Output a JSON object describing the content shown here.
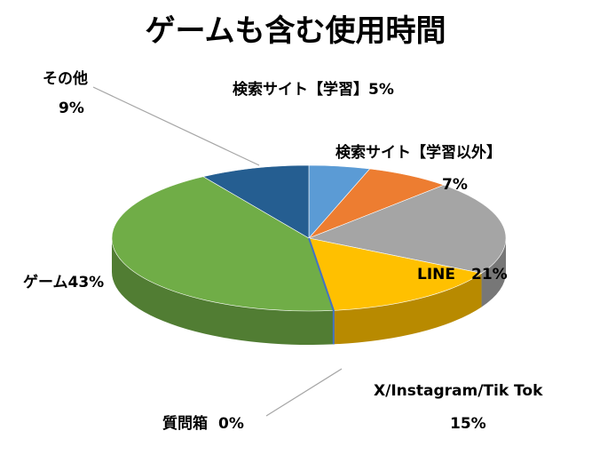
{
  "chart_data": {
    "type": "pie",
    "title": "ゲームも含む使用時間",
    "slices": [
      {
        "label": "検索サイト【学習】",
        "value": 5,
        "text": "5%",
        "color": "#5B9BD5"
      },
      {
        "label": "検索サイト【学習以外】",
        "value": 7,
        "text": "7%",
        "color": "#ED7D31"
      },
      {
        "label": "LINE",
        "value": 21,
        "text": "21%",
        "color": "#A5A5A5"
      },
      {
        "label": "X/Instagram/Tik Tok",
        "value": 15,
        "text": "15%",
        "color": "#FFC000"
      },
      {
        "label": "質問箱",
        "value": 0,
        "text": "0%",
        "color": "#4472C4"
      },
      {
        "label": "ゲーム",
        "value": 43,
        "text": "43%",
        "color": "#70AD47"
      },
      {
        "label": "その他",
        "value": 9,
        "text": "9%",
        "color": "#255E91"
      }
    ]
  }
}
